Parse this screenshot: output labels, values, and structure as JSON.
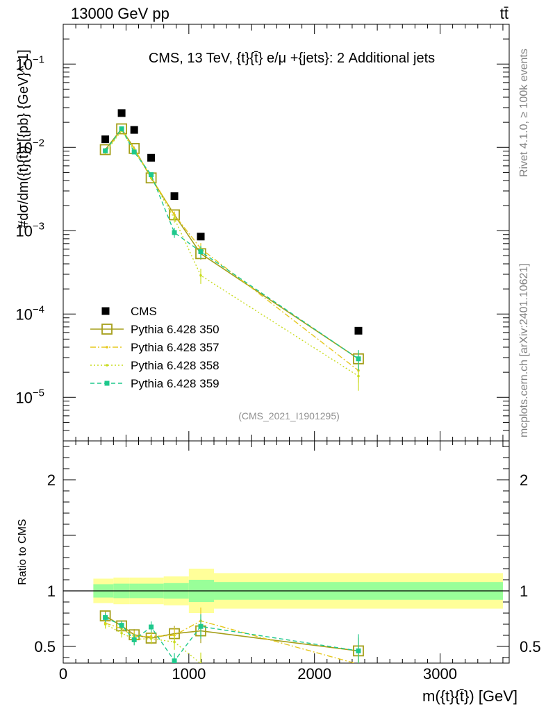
{
  "header": {
    "energy_label": "13000 GeV pp",
    "process_label": "tt̄"
  },
  "side_labels": {
    "rivet": "Rivet 4.1.0, ≥ 100k events",
    "mcplots": "mcplots.cern.ch [arXiv:2401.10621]"
  },
  "colors": {
    "data": "#000000",
    "s350": "#a59f1a",
    "s357": "#e6c81e",
    "s358": "#c8dc1e",
    "s359": "#1ec88c",
    "band_outer": "#ffff99",
    "band_inner": "#99ff99"
  },
  "chart_data": [
    {
      "type": "scatter",
      "yscale": "log",
      "title": "CMS, 13 TeV, {t}{t̄} e/μ +{jets}: 2 Additional jets",
      "ylabel": "#dσ/dm({t}{t̄}) [{pb} {GeV}^-1]",
      "xlim": [
        0,
        3550
      ],
      "ylim": [
        3e-06,
        0.3
      ],
      "y_ticks": [
        {
          "value": 1e-05,
          "base": "10",
          "exp": "−5"
        },
        {
          "value": 0.0001,
          "base": "10",
          "exp": "−4"
        },
        {
          "value": 0.001,
          "base": "10",
          "exp": "−3"
        },
        {
          "value": 0.01,
          "base": "10",
          "exp": "−2"
        },
        {
          "value": 0.1,
          "base": "10",
          "exp": "−1"
        }
      ],
      "watermark": "(CMS_2021_I1901295)",
      "x": [
        335,
        465,
        565,
        700,
        885,
        1095,
        2350
      ],
      "series": [
        {
          "key": "cms",
          "name": "CMS",
          "style": "data",
          "values": [
            0.0125,
            0.0258,
            0.0162,
            0.0075,
            0.0026,
            0.00085,
            6.3e-05
          ],
          "errors": [
            0,
            0,
            0,
            0,
            0,
            0,
            0
          ]
        },
        {
          "key": "s350",
          "name": "Pythia 6.428 350",
          "style": "solid-open-square",
          "values": [
            0.0094,
            0.0167,
            0.0097,
            0.0043,
            0.00155,
            0.00053,
            2.9e-05
          ],
          "errors": [
            0.0004,
            0.0006,
            0.0005,
            0.0003,
            0.00013,
            8e-05,
            7e-06
          ]
        },
        {
          "key": "s357",
          "name": "Pythia 6.428 357",
          "style": "dashdot",
          "values": [
            0.0088,
            0.0165,
            0.0096,
            0.0044,
            0.00155,
            0.00061,
            2.1e-05
          ],
          "errors": [
            0.0004,
            0.0006,
            0.0005,
            0.0003,
            0.00015,
            0.0001,
            6e-06
          ]
        },
        {
          "key": "s358",
          "name": "Pythia 6.428 358",
          "style": "dotted",
          "values": [
            0.0087,
            0.0159,
            0.0092,
            0.0043,
            0.0014,
            0.00029,
            1.8e-05
          ],
          "errors": [
            0.0004,
            0.0006,
            0.0005,
            0.0003,
            0.00015,
            6e-05,
            6e-06
          ]
        },
        {
          "key": "s359",
          "name": "Pythia 6.428 359",
          "style": "dashed-square",
          "values": [
            0.0091,
            0.0167,
            0.0088,
            0.0047,
            0.00095,
            0.00056,
            2.9e-05
          ],
          "errors": [
            0.0004,
            0.0006,
            0.0005,
            0.0003,
            0.00013,
            0.0001,
            8e-06
          ]
        }
      ]
    },
    {
      "type": "scatter",
      "ylabel": "Ratio to CMS",
      "xlabel": "m({t}{t̄}) [GeV]",
      "xlim": [
        0,
        3550
      ],
      "ylim": [
        0.35,
        2.35
      ],
      "x_ticks": [
        0,
        1000,
        2000,
        3000
      ],
      "y_ticks": [
        0.5,
        1,
        2
      ],
      "bands": [
        {
          "x0": 240,
          "x1": 400,
          "outer": 0.11,
          "inner": 0.06
        },
        {
          "x0": 400,
          "x1": 530,
          "outer": 0.12,
          "inner": 0.065
        },
        {
          "x0": 530,
          "x1": 600,
          "outer": 0.12,
          "inner": 0.065
        },
        {
          "x0": 600,
          "x1": 800,
          "outer": 0.12,
          "inner": 0.065
        },
        {
          "x0": 800,
          "x1": 1000,
          "outer": 0.13,
          "inner": 0.07
        },
        {
          "x0": 1000,
          "x1": 1200,
          "outer": 0.2,
          "inner": 0.1
        },
        {
          "x0": 1200,
          "x1": 3500,
          "outer": 0.16,
          "inner": 0.08
        }
      ],
      "x": [
        335,
        465,
        565,
        700,
        885,
        1095,
        2350
      ],
      "series": [
        {
          "key": "s350",
          "name": "Pythia 6.428 350",
          "values": [
            0.775,
            0.685,
            0.605,
            0.575,
            0.615,
            0.64,
            0.46
          ],
          "errors": [
            0.04,
            0.04,
            0.05,
            0.05,
            0.07,
            0.11,
            0.12
          ]
        },
        {
          "key": "s357",
          "name": "Pythia 6.428 357",
          "values": [
            0.71,
            0.66,
            0.59,
            0.59,
            0.6,
            0.73,
            0.34
          ],
          "errors": [
            0.04,
            0.04,
            0.05,
            0.05,
            0.07,
            0.12,
            0.1
          ]
        },
        {
          "key": "s358",
          "name": "Pythia 6.428 358",
          "values": [
            0.7,
            0.62,
            0.565,
            0.57,
            0.54,
            0.345,
            0.29
          ],
          "errors": [
            0.04,
            0.04,
            0.05,
            0.05,
            0.07,
            0.1,
            0.1
          ]
        },
        {
          "key": "s359",
          "name": "Pythia 6.428 359",
          "values": [
            0.76,
            0.69,
            0.56,
            0.675,
            0.37,
            0.68,
            0.46
          ],
          "errors": [
            0.04,
            0.04,
            0.05,
            0.05,
            0.07,
            0.11,
            0.15
          ]
        }
      ]
    }
  ]
}
